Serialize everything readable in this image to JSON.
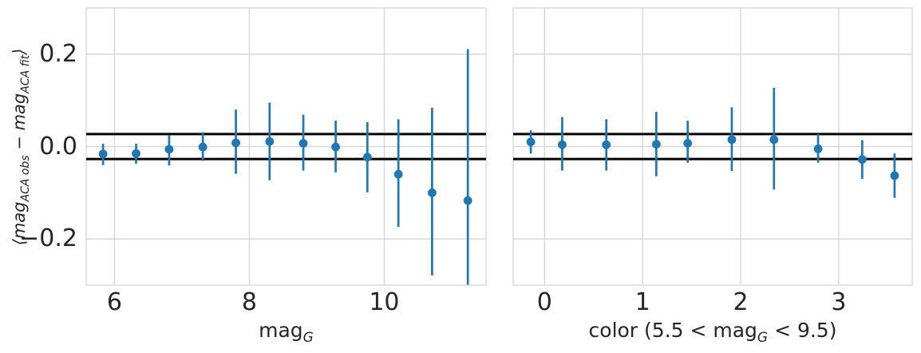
{
  "style": {
    "background": "#ffffff",
    "accent_blue": "#1f77b4",
    "reference_line_color": "#000000",
    "grid_color": "#d5d5d5",
    "spine_color": "#d5d5d5",
    "text_color": "#262626"
  },
  "ylabel_parts": [
    {
      "t": "⟨mag"
    },
    {
      "s": "ACA obs"
    },
    {
      "t": " − mag"
    },
    {
      "s": "ACA fit"
    },
    {
      "t": "⟩"
    }
  ],
  "ylabel_text": "⟨mag_ACAobs − mag_ACAfit⟩",
  "chart_data": [
    {
      "type": "scatter",
      "name": "mag-panel",
      "xlabel_parts": [
        {
          "t": "mag"
        },
        {
          "s": "G"
        }
      ],
      "xlabel_text": "mag_G",
      "xlim": [
        5.58,
        11.51
      ],
      "ylim": [
        -0.3,
        0.3
      ],
      "grid": true,
      "legend": "none",
      "xticks": [
        {
          "v": 6,
          "label": "6"
        },
        {
          "v": 8,
          "label": "8"
        },
        {
          "v": 10,
          "label": "10"
        }
      ],
      "yticks": [
        {
          "v": 0.2,
          "label": "0.2"
        },
        {
          "v": 0.0,
          "label": "0.0"
        },
        {
          "v": -0.2,
          "label": "−0.2"
        }
      ],
      "reference_lines": [
        0.027,
        -0.027
      ],
      "x": [
        5.83,
        6.32,
        6.81,
        7.31,
        7.8,
        8.3,
        8.8,
        9.28,
        9.75,
        10.21,
        10.71,
        11.24
      ],
      "y": [
        -0.016,
        -0.015,
        -0.006,
        -0.001,
        0.008,
        0.011,
        0.007,
        -0.001,
        -0.023,
        -0.06,
        -0.1,
        -0.117
      ],
      "y_hi": [
        0.006,
        0.006,
        0.024,
        0.031,
        0.08,
        0.095,
        0.069,
        0.056,
        0.053,
        0.059,
        0.084,
        0.211
      ],
      "y_lo": [
        -0.04,
        -0.037,
        -0.041,
        -0.031,
        -0.059,
        -0.073,
        -0.052,
        -0.056,
        -0.099,
        -0.174,
        -0.279,
        -0.299
      ]
    },
    {
      "type": "scatter",
      "name": "color-panel",
      "xlabel_parts": [
        {
          "t": "color (5.5 < mag"
        },
        {
          "s": "G"
        },
        {
          "t": " < 9.5)"
        }
      ],
      "xlabel_text": "color (5.5 < mag_G < 9.5)",
      "xlim": [
        -0.32,
        3.75
      ],
      "ylim": [
        -0.3,
        0.3
      ],
      "grid": true,
      "legend": "none",
      "xticks": [
        {
          "v": 0,
          "label": "0"
        },
        {
          "v": 1,
          "label": "1"
        },
        {
          "v": 2,
          "label": "2"
        },
        {
          "v": 3,
          "label": "3"
        }
      ],
      "yticks": [
        {
          "v": 0.2,
          "label": ""
        },
        {
          "v": 0.0,
          "label": ""
        },
        {
          "v": -0.2,
          "label": ""
        }
      ],
      "reference_lines": [
        0.027,
        -0.027
      ],
      "x": [
        -0.14,
        0.18,
        0.63,
        1.14,
        1.46,
        1.91,
        2.34,
        2.79,
        3.24,
        3.57
      ],
      "y": [
        0.01,
        0.004,
        0.004,
        0.005,
        0.007,
        0.015,
        0.015,
        -0.005,
        -0.028,
        -0.063
      ],
      "y_hi": [
        0.035,
        0.064,
        0.059,
        0.075,
        0.056,
        0.085,
        0.127,
        0.027,
        0.014,
        -0.015
      ],
      "y_lo": [
        -0.015,
        -0.052,
        -0.052,
        -0.064,
        -0.035,
        -0.053,
        -0.093,
        -0.035,
        -0.07,
        -0.111
      ]
    }
  ]
}
